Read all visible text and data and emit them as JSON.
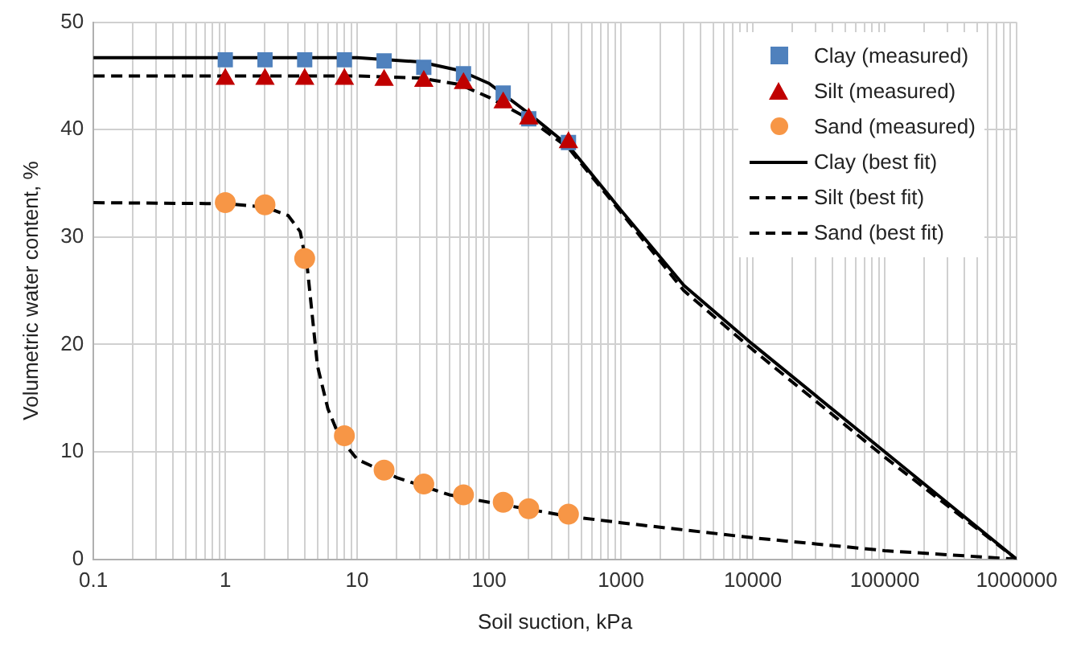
{
  "chart_data": {
    "type": "scatter",
    "xlabel": "Soil suction, kPa",
    "ylabel": "Volumetric water content, %",
    "log": "x",
    "grid": true,
    "legend": "top right",
    "xlim": [
      0.1,
      1000000
    ],
    "ylim": [
      0,
      50
    ],
    "yticks": [
      0,
      10,
      20,
      30,
      40,
      50
    ],
    "xticks": [
      0.1,
      {
        "value": 0.2,
        "label": null
      },
      {
        "value": 0.3,
        "label": null
      },
      {
        "value": 0.4,
        "label": null
      },
      {
        "value": 0.5,
        "label": null
      },
      {
        "value": 0.6,
        "label": null
      },
      {
        "value": 0.7,
        "label": null
      },
      {
        "value": 0.8,
        "label": null
      },
      {
        "value": 0.9,
        "label": null
      },
      1,
      {
        "value": 2,
        "label": null
      },
      {
        "value": 3,
        "label": null
      },
      {
        "value": 4,
        "label": null
      },
      {
        "value": 5,
        "label": null
      },
      {
        "value": 6,
        "label": null
      },
      {
        "value": 7,
        "label": null
      },
      {
        "value": 8,
        "label": null
      },
      {
        "value": 9,
        "label": null
      },
      10,
      {
        "value": 20,
        "label": null
      },
      {
        "value": 30,
        "label": null
      },
      {
        "value": 40,
        "label": null
      },
      {
        "value": 50,
        "label": null
      },
      {
        "value": 60,
        "label": null
      },
      {
        "value": 70,
        "label": null
      },
      {
        "value": 80,
        "label": null
      },
      {
        "value": 90,
        "label": null
      },
      100,
      {
        "value": 200,
        "label": null
      },
      {
        "value": 300,
        "label": null
      },
      {
        "value": 400,
        "label": null
      },
      {
        "value": 500,
        "label": null
      },
      {
        "value": 600,
        "label": null
      },
      {
        "value": 700,
        "label": null
      },
      {
        "value": 800,
        "label": null
      },
      {
        "value": 900,
        "label": null
      },
      1000,
      {
        "value": 2000,
        "label": null
      },
      {
        "value": 3000,
        "label": null
      },
      {
        "value": 4000,
        "label": null
      },
      {
        "value": 5000,
        "label": null
      },
      {
        "value": 6000,
        "label": null
      },
      {
        "value": 7000,
        "label": null
      },
      {
        "value": 8000,
        "label": null
      },
      {
        "value": 9000,
        "label": null
      },
      10000,
      {
        "value": 20000,
        "label": null
      },
      {
        "value": 30000,
        "label": null
      },
      {
        "value": 40000,
        "label": null
      },
      {
        "value": 50000,
        "label": null
      },
      {
        "value": 60000,
        "label": null
      },
      {
        "value": 70000,
        "label": null
      },
      {
        "value": 80000,
        "label": null
      },
      {
        "value": 90000,
        "label": null
      },
      100000,
      {
        "value": 200000,
        "label": null
      },
      {
        "value": 300000,
        "label": null
      },
      {
        "value": 400000,
        "label": null
      },
      {
        "value": 500000,
        "label": null
      },
      {
        "value": 600000,
        "label": null
      },
      {
        "value": 700000,
        "label": null
      },
      {
        "value": 800000,
        "label": null
      },
      {
        "value": 900000,
        "label": null
      },
      1000000
    ],
    "series": [
      {
        "name": "Clay (best fit)",
        "type": "line",
        "line_style": "solid",
        "color": "#000000",
        "x": [
          0.1,
          10,
          30,
          60,
          100,
          200,
          400,
          1000,
          3000,
          10000,
          100000,
          1000000
        ],
        "values": [
          46.7,
          46.7,
          46.3,
          45.5,
          44.3,
          41.5,
          38.5,
          32.5,
          25.5,
          20,
          10,
          0
        ]
      },
      {
        "name": "Silt (best fit)",
        "type": "line",
        "line_style": "dashed",
        "color": "#000000",
        "x": [
          0.1,
          10,
          30,
          60,
          100,
          200,
          400,
          1000,
          3000,
          10000,
          100000,
          1000000
        ],
        "values": [
          45,
          45,
          44.8,
          44.2,
          43,
          41,
          38.3,
          32.3,
          25,
          19.5,
          9.5,
          0
        ]
      },
      {
        "name": "Sand (best fit)",
        "type": "line",
        "line_style": "dashed",
        "color": "#000000",
        "x": [
          0.1,
          1,
          2,
          3,
          3.7,
          4.2,
          5,
          6,
          7,
          8,
          10,
          20,
          50,
          100,
          400,
          1000,
          10000,
          100000,
          1000000
        ],
        "values": [
          33.2,
          33.1,
          32.8,
          32,
          30.5,
          27,
          18,
          14,
          12,
          10.8,
          9.3,
          7.6,
          6,
          5.3,
          4,
          3.4,
          2,
          0.8,
          0
        ]
      },
      {
        "name": "Clay (measured)",
        "marker": "square",
        "color": "#4f81bd",
        "x": [
          1,
          2,
          4,
          8,
          16,
          32,
          64,
          128,
          200,
          400
        ],
        "values": [
          46.5,
          46.5,
          46.5,
          46.5,
          46.4,
          45.8,
          45.2,
          43.4,
          41,
          38.8
        ]
      },
      {
        "name": "Silt (measured)",
        "marker": "triangle",
        "color": "#c00000",
        "x": [
          1,
          2,
          4,
          8,
          16,
          32,
          64,
          128,
          200,
          400
        ],
        "values": [
          44.7,
          44.7,
          44.7,
          44.7,
          44.6,
          44.5,
          44.3,
          42.5,
          41,
          38.8
        ]
      },
      {
        "name": "Sand (measured)",
        "marker": "circle",
        "color": "#f79646",
        "x": [
          1,
          2,
          4,
          8,
          16,
          32,
          64,
          128,
          200,
          400
        ],
        "values": [
          33.2,
          33,
          28,
          11.5,
          8.3,
          7,
          6,
          5.3,
          4.7,
          4.2
        ]
      }
    ]
  }
}
